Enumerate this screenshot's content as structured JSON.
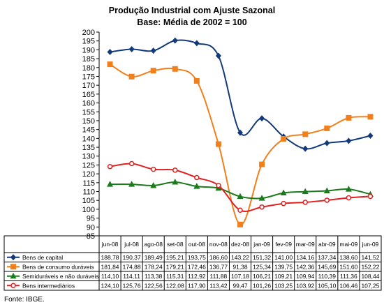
{
  "chart_data": {
    "type": "line",
    "title": "Produção Industrial com Ajuste Sazonal",
    "subtitle": "Base: Média de 2002 = 100",
    "xlabel": "",
    "ylabel": "",
    "ylim": [
      85,
      200
    ],
    "ytick_step": 5,
    "grid": false,
    "legend": "table below chart",
    "categories": [
      "jun-08",
      "jul-08",
      "ago-08",
      "set-08",
      "out-08",
      "nov-08",
      "dez-08",
      "jan-09",
      "fev-09",
      "mar-09",
      "abr-09",
      "mai-09",
      "jun-09"
    ],
    "series": [
      {
        "name": "Bens de capital",
        "color": "#123a7a",
        "marker": "diamond",
        "labels": [
          "188,78",
          "190,37",
          "189,49",
          "195,21",
          "193,75",
          "186,60",
          "143,22",
          "151,32",
          "141,00",
          "134,16",
          "137,34",
          "138,60",
          "141,52"
        ],
        "values": [
          188.78,
          190.37,
          189.49,
          195.21,
          193.75,
          186.6,
          143.22,
          151.32,
          141.0,
          134.16,
          137.34,
          138.6,
          141.52
        ]
      },
      {
        "name": "Bens de consumo duráveis",
        "color": "#f07f1c",
        "marker": "square",
        "labels": [
          "181,84",
          "174,88",
          "178,24",
          "179,21",
          "172,46",
          "136,77",
          "91,38",
          "125,34",
          "139,75",
          "142,36",
          "145,69",
          "151,60",
          "152,22"
        ],
        "values": [
          181.84,
          174.88,
          178.24,
          179.21,
          172.46,
          136.77,
          91.38,
          125.34,
          139.75,
          142.36,
          145.69,
          151.6,
          152.22
        ]
      },
      {
        "name": "Semiduráveis e não duráveis",
        "color": "#1b7a1b",
        "marker": "triangle",
        "labels": [
          "114,10",
          "114,11",
          "113,38",
          "115,31",
          "112,92",
          "111,88",
          "107,18",
          "106,21",
          "109,21",
          "109,94",
          "110,39",
          "111,36",
          "108,44"
        ],
        "values": [
          114.1,
          114.11,
          113.38,
          115.31,
          112.92,
          111.88,
          107.18,
          106.21,
          109.21,
          109.94,
          110.39,
          111.36,
          108.44
        ]
      },
      {
        "name": "Bens intermediários",
        "color": "#e02020",
        "marker": "circle",
        "labels": [
          "124,10",
          "125,76",
          "122,56",
          "122,08",
          "117,90",
          "113,42",
          "99,47",
          "101,26",
          "103,25",
          "103,92",
          "105,10",
          "106,46",
          "107,25"
        ],
        "values": [
          124.1,
          125.76,
          122.56,
          122.08,
          117.9,
          113.42,
          99.47,
          101.26,
          103.25,
          103.92,
          105.1,
          106.46,
          107.25
        ]
      }
    ]
  },
  "footer": {
    "source": "Fonte: IBGE."
  }
}
